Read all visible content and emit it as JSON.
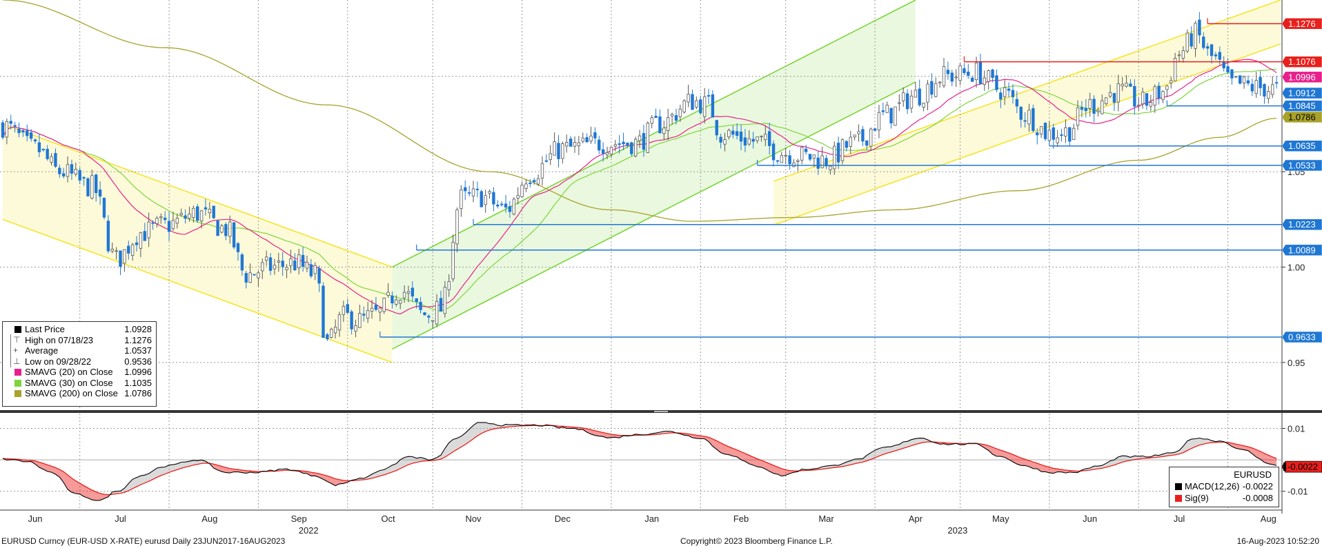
{
  "footer": {
    "left": "EURUSD Curncy (EUR-USD X-RATE) eurusd  Daily 23JUN2017-16AUG2023",
    "center": "Copyright© 2023 Bloomberg Finance L.P.",
    "right": "16-Aug-2023 10:52:20"
  },
  "legend": [
    {
      "glyph": "■",
      "label": "Last Price",
      "value": "1.0928",
      "color": "#000000"
    },
    {
      "glyph": "⊤",
      "label": "High on 07/18/23",
      "value": "1.1276",
      "color": ""
    },
    {
      "glyph": "+",
      "label": "Average",
      "value": "1.0537",
      "color": ""
    },
    {
      "glyph": "⊥",
      "label": "Low on 09/28/22",
      "value": "0.9536",
      "color": ""
    },
    {
      "glyph": "",
      "label": "SMAVG (20)  on Close",
      "value": "1.0996",
      "color": "#e8208c"
    },
    {
      "glyph": "",
      "label": "SMAVG (30)  on Close",
      "value": "1.1035",
      "color": "#7cd63a"
    },
    {
      "glyph": "",
      "label": "SMAVG (200)  on Close",
      "value": "1.0786",
      "color": "#a8a22a"
    }
  ],
  "macd_legend": {
    "title": "EURUSD",
    "rows": [
      {
        "label": "MACD(12,26)",
        "value": "-0.0022",
        "color": "#000000"
      },
      {
        "label": "Sig(9)",
        "value": "-0.0008",
        "color": "#e8201c"
      }
    ]
  },
  "colors": {
    "up_candle": "#555555",
    "down_candle": "#1f77d4",
    "sma20": "#e8208c",
    "sma30": "#7cd63a",
    "sma200": "#a8a22a",
    "support": "#1f77d4",
    "resistance": "#e8201c",
    "channel_yellow": "#f5e52a",
    "channel_green": "#7cd63a"
  },
  "chart_data": {
    "type": "candlestick",
    "price_axis": {
      "ticks": [
        0.95,
        1.0,
        1.05
      ],
      "tick_labels": [
        "0.95",
        "1.00",
        "1.05"
      ],
      "range": [
        0.925,
        1.14
      ]
    },
    "macd_axis": {
      "ticks": [
        0.01,
        -0.01
      ],
      "tick_labels": [
        "0.01",
        "-0.01"
      ],
      "range": [
        -0.016,
        0.0145
      ]
    },
    "x_axis": {
      "months": [
        {
          "label": "Jun",
          "i": 8
        },
        {
          "label": "Jul",
          "i": 29
        },
        {
          "label": "Aug",
          "i": 51
        },
        {
          "label": "Sep",
          "i": 73
        },
        {
          "label": "Oct",
          "i": 95
        },
        {
          "label": "Nov",
          "i": 116
        },
        {
          "label": "Dec",
          "i": 138
        },
        {
          "label": "Jan",
          "i": 160
        },
        {
          "label": "Feb",
          "i": 182
        },
        {
          "label": "Mar",
          "i": 203
        },
        {
          "label": "Apr",
          "i": 225
        },
        {
          "label": "May",
          "i": 246
        },
        {
          "label": "Jun",
          "i": 268
        },
        {
          "label": "Jul",
          "i": 290
        },
        {
          "label": "Aug",
          "i": 312
        }
      ],
      "years": [
        {
          "label": "2022",
          "i": 73
        },
        {
          "label": "2023",
          "i": 233
        }
      ],
      "n_bars": 315
    },
    "price_anchors": [
      [
        0,
        1.074
      ],
      [
        8,
        1.062
      ],
      [
        14,
        1.05
      ],
      [
        22,
        1.042
      ],
      [
        28,
        1.004
      ],
      [
        34,
        1.018
      ],
      [
        40,
        1.022
      ],
      [
        48,
        1.028
      ],
      [
        55,
        1.02
      ],
      [
        60,
        0.996
      ],
      [
        66,
        1.0
      ],
      [
        72,
        1.002
      ],
      [
        77,
        0.996
      ],
      [
        80,
        0.96
      ],
      [
        84,
        0.974
      ],
      [
        88,
        0.972
      ],
      [
        92,
        0.975
      ],
      [
        98,
        0.988
      ],
      [
        104,
        0.975
      ],
      [
        108,
        0.978
      ],
      [
        113,
        1.036
      ],
      [
        118,
        1.037
      ],
      [
        124,
        1.03
      ],
      [
        130,
        1.049
      ],
      [
        138,
        1.062
      ],
      [
        148,
        1.065
      ],
      [
        156,
        1.065
      ],
      [
        162,
        1.075
      ],
      [
        170,
        1.087
      ],
      [
        174,
        1.085
      ],
      [
        177,
        1.07
      ],
      [
        186,
        1.066
      ],
      [
        192,
        1.06
      ],
      [
        198,
        1.058
      ],
      [
        203,
        1.056
      ],
      [
        210,
        1.065
      ],
      [
        218,
        1.08
      ],
      [
        225,
        1.09
      ],
      [
        232,
        1.1
      ],
      [
        240,
        1.102
      ],
      [
        246,
        1.093
      ],
      [
        252,
        1.08
      ],
      [
        258,
        1.07
      ],
      [
        262,
        1.071
      ],
      [
        268,
        1.085
      ],
      [
        275,
        1.092
      ],
      [
        281,
        1.086
      ],
      [
        286,
        1.092
      ],
      [
        290,
        1.112
      ],
      [
        294,
        1.122
      ],
      [
        298,
        1.11
      ],
      [
        303,
        1.096
      ],
      [
        310,
        1.094
      ],
      [
        314,
        1.093
      ]
    ],
    "sma20": "20-day simple moving average of Close (value 1.0996)",
    "sma30": "30-day simple moving average of Close (value 1.1035)",
    "sma200": "200-day simple moving average of Close (value 1.0786)",
    "horizontal_levels": [
      {
        "price": 1.1276,
        "label": "1.1276",
        "color": "#e8201c",
        "from_i": 297
      },
      {
        "price": 1.1076,
        "label": "1.1076",
        "color": "#e8201c",
        "from_i": 237
      },
      {
        "price": 1.0845,
        "label": "1.0845",
        "color": "#1f77d4",
        "from_i": 287
      },
      {
        "price": 1.0635,
        "label": "1.0635",
        "color": "#1f77d4",
        "from_i": 258
      },
      {
        "price": 1.0533,
        "label": "1.0533",
        "color": "#1f77d4",
        "from_i": 186
      },
      {
        "price": 1.0223,
        "label": "1.0223",
        "color": "#1f77d4",
        "from_i": 116
      },
      {
        "price": 1.0089,
        "label": "1.0089",
        "color": "#1f77d4",
        "from_i": 102
      },
      {
        "price": 0.9633,
        "label": "0.9633",
        "color": "#1f77d4",
        "from_i": 93
      }
    ],
    "right_tags": [
      {
        "price": 1.1276,
        "label": "1.1276",
        "bg": "#e8201c",
        "fg": "#ffffff"
      },
      {
        "price": 1.1076,
        "label": "1.1076",
        "bg": "#e8201c",
        "fg": "#ffffff"
      },
      {
        "price": 1.0996,
        "label": "1.0996",
        "bg": "#e8208c",
        "fg": "#ffffff"
      },
      {
        "price": 1.0912,
        "label": "1.0912",
        "bg": "#1f77d4",
        "fg": "#ffffff"
      },
      {
        "price": 1.0845,
        "label": "1.0845",
        "bg": "#1f77d4",
        "fg": "#ffffff"
      },
      {
        "price": 1.0786,
        "label": "1.0786",
        "bg": "#a8a22a",
        "fg": "#000000"
      },
      {
        "price": 1.0635,
        "label": "1.0635",
        "bg": "#1f77d4",
        "fg": "#ffffff"
      },
      {
        "price": 1.0533,
        "label": "1.0533",
        "bg": "#1f77d4",
        "fg": "#ffffff"
      },
      {
        "price": 1.0223,
        "label": "1.0223",
        "bg": "#1f77d4",
        "fg": "#ffffff"
      },
      {
        "price": 1.0089,
        "label": "1.0089",
        "bg": "#1f77d4",
        "fg": "#ffffff"
      },
      {
        "price": 0.9633,
        "label": "0.9633",
        "bg": "#1f77d4",
        "fg": "#ffffff"
      }
    ],
    "channels": [
      {
        "color": "yellow",
        "upper": [
          [
            0,
            1.075
          ],
          [
            96,
            1.0
          ]
        ],
        "lower": [
          [
            0,
            1.025
          ],
          [
            96,
            0.95
          ]
        ]
      },
      {
        "color": "green",
        "upper": [
          [
            96,
            1.0
          ],
          [
            225,
            1.14
          ]
        ],
        "lower": [
          [
            96,
            0.957
          ],
          [
            225,
            1.097
          ]
        ]
      },
      {
        "color": "yellow",
        "upper": [
          [
            190,
            1.045
          ],
          [
            315,
            1.14
          ]
        ],
        "lower": [
          [
            190,
            1.022
          ],
          [
            315,
            1.117
          ]
        ]
      }
    ],
    "macd_tag": {
      "value": -0.0022,
      "label": "-0.0022"
    },
    "macd_anchors": [
      [
        0,
        0.0002
      ],
      [
        6,
        -0.0005
      ],
      [
        12,
        -0.004
      ],
      [
        18,
        -0.011
      ],
      [
        24,
        -0.013
      ],
      [
        28,
        -0.01
      ],
      [
        34,
        -0.005
      ],
      [
        40,
        -0.002
      ],
      [
        48,
        0.0
      ],
      [
        55,
        -0.004
      ],
      [
        62,
        -0.004
      ],
      [
        70,
        -0.003
      ],
      [
        77,
        -0.005
      ],
      [
        82,
        -0.008
      ],
      [
        88,
        -0.006
      ],
      [
        94,
        -0.003
      ],
      [
        100,
        0.001
      ],
      [
        106,
        0.0
      ],
      [
        112,
        0.007
      ],
      [
        118,
        0.012
      ],
      [
        124,
        0.011
      ],
      [
        132,
        0.011
      ],
      [
        140,
        0.01
      ],
      [
        150,
        0.007
      ],
      [
        156,
        0.008
      ],
      [
        164,
        0.009
      ],
      [
        172,
        0.007
      ],
      [
        178,
        0.002
      ],
      [
        186,
        -0.002
      ],
      [
        192,
        -0.005
      ],
      [
        198,
        -0.003
      ],
      [
        204,
        -0.002
      ],
      [
        210,
        0.0
      ],
      [
        218,
        0.004
      ],
      [
        226,
        0.007
      ],
      [
        232,
        0.005
      ],
      [
        240,
        0.005
      ],
      [
        246,
        0.001
      ],
      [
        252,
        -0.002
      ],
      [
        258,
        -0.004
      ],
      [
        264,
        -0.004
      ],
      [
        270,
        -0.002
      ],
      [
        276,
        0.001
      ],
      [
        282,
        0.001
      ],
      [
        288,
        0.002
      ],
      [
        294,
        0.007
      ],
      [
        300,
        0.006
      ],
      [
        306,
        0.003
      ],
      [
        312,
        -0.001
      ],
      [
        315,
        -0.0022
      ]
    ]
  }
}
